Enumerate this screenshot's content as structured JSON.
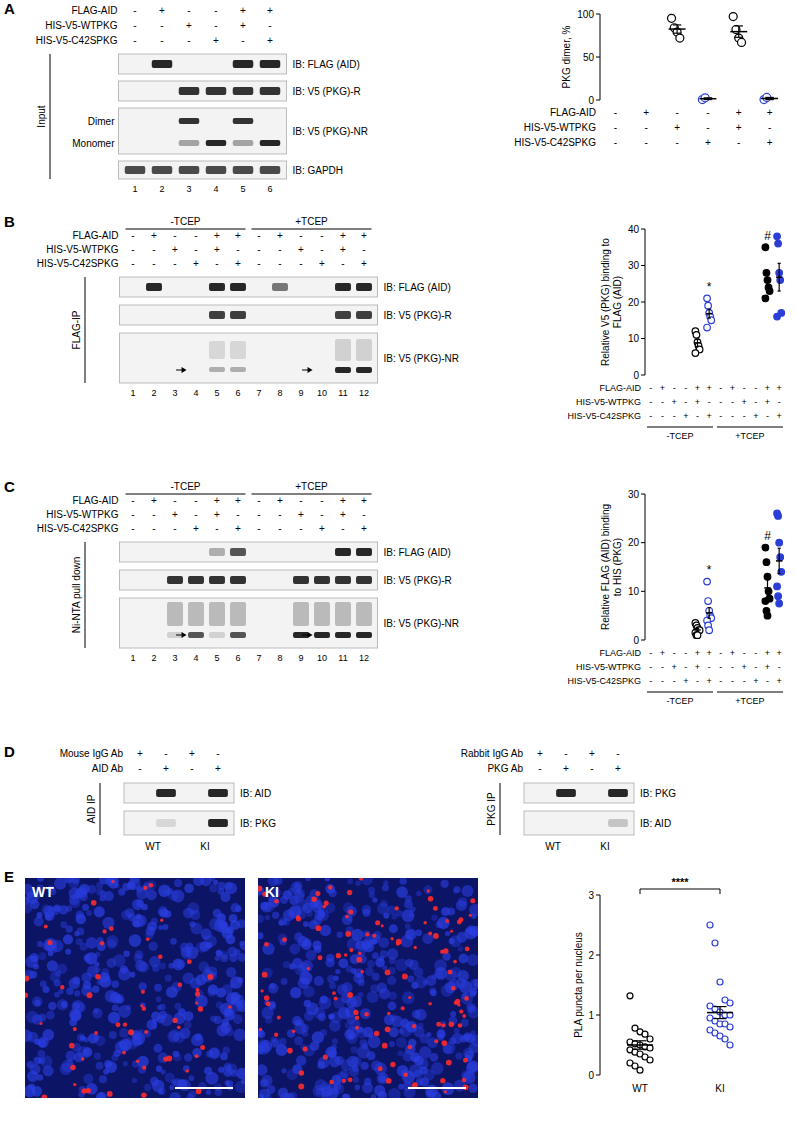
{
  "chart_data": [
    {
      "type": "scatter",
      "y_label": "PKG dimer, %",
      "ylim": [
        0,
        100
      ],
      "yticks": [
        0,
        50,
        100
      ],
      "grid": false,
      "categories": [
        null,
        null,
        null,
        null,
        null,
        null
      ],
      "condition_rows": [
        {
          "label": "FLAG-AID",
          "signs": [
            "-",
            "+",
            "-",
            "-",
            "+",
            "+"
          ]
        },
        {
          "label": "HIS-V5-WTPKG",
          "signs": [
            "-",
            "-",
            "+",
            "-",
            "+",
            "-"
          ]
        },
        {
          "label": "HIS-V5-C42SPKG",
          "signs": [
            "-",
            "-",
            "-",
            "+",
            "-",
            "+"
          ]
        }
      ],
      "colors": [
        "#000000",
        "#000000",
        "#000000",
        "#2b3fd6",
        "#000000",
        "#2b3fd6"
      ],
      "markers": [
        "open",
        "open",
        "open",
        "open",
        "open",
        "open"
      ],
      "points": [
        [],
        [],
        [
          95,
          84,
          79,
          72
        ],
        [
          0.5,
          2.5
        ],
        [
          97,
          82,
          72,
          67
        ],
        [
          0.5,
          3
        ]
      ],
      "means": [
        null,
        null,
        82.5,
        1.5,
        79.5,
        1.75
      ],
      "errors": [
        null,
        null,
        4.8,
        1,
        6.6,
        1.25
      ]
    },
    {
      "type": "scatter",
      "y_label": "Relative V5 (PKG) binding to FLAG (AID)",
      "ylim": [
        0,
        40
      ],
      "yticks": [
        0,
        10,
        20,
        30,
        40
      ],
      "grid": false,
      "categories": [
        null,
        null,
        null,
        null,
        null,
        null,
        null,
        null,
        null,
        null,
        null,
        null
      ],
      "condition_rows": [
        {
          "label": "FLAG-AID",
          "signs": [
            "-",
            "+",
            "-",
            "-",
            "+",
            "+",
            "-",
            "+",
            "-",
            "-",
            "+",
            "+"
          ]
        },
        {
          "label": "HIS-V5-WTPKG",
          "signs": [
            "-",
            "-",
            "+",
            "-",
            "+",
            "-",
            "-",
            "-",
            "+",
            "-",
            "+",
            "-"
          ]
        },
        {
          "label": "HIS-V5-C42SPKG",
          "signs": [
            "-",
            "-",
            "-",
            "+",
            "-",
            "+",
            "-",
            "-",
            "-",
            "+",
            "-",
            "+"
          ]
        }
      ],
      "groups": [
        {
          "label": "-TCEP",
          "span": [
            0,
            5
          ]
        },
        {
          "label": "+TCEP",
          "span": [
            6,
            11
          ]
        }
      ],
      "colors": [
        "#000000",
        "#000000",
        "#000000",
        "#2b3fd6",
        "#000000",
        "#2b3fd6",
        "#000000",
        "#000000",
        "#000000",
        "#2b3fd6",
        "#000000",
        "#2b3fd6"
      ],
      "markers": [
        "open",
        "open",
        "open",
        "open",
        "open",
        "open",
        "filled",
        "filled",
        "filled",
        "filled",
        "filled",
        "filled"
      ],
      "points": [
        [],
        [],
        [],
        [],
        [
          12,
          11,
          9,
          8,
          7,
          6
        ],
        [
          21,
          19,
          17,
          16,
          15,
          13
        ],
        [],
        [],
        [],
        [],
        [
          35,
          28,
          26,
          24,
          23,
          21
        ],
        [
          38,
          36,
          28,
          26,
          17,
          16
        ]
      ],
      "means": [
        null,
        null,
        null,
        null,
        8.8,
        16.8,
        null,
        null,
        null,
        null,
        26.2,
        26.8
      ],
      "errors": [
        null,
        null,
        null,
        null,
        1,
        1.2,
        null,
        null,
        null,
        null,
        2,
        3.8
      ],
      "annotations": [
        {
          "text": "*",
          "category": 5
        },
        {
          "text": "#",
          "category": 10
        }
      ]
    },
    {
      "type": "scatter",
      "y_label": "Relative FLAG (AID) binding to HIS (PKG)",
      "ylim": [
        0,
        30
      ],
      "yticks": [
        0,
        10,
        20,
        30
      ],
      "grid": false,
      "categories": [
        null,
        null,
        null,
        null,
        null,
        null,
        null,
        null,
        null,
        null,
        null,
        null
      ],
      "condition_rows": [
        {
          "label": "FLAG-AID",
          "signs": [
            "-",
            "+",
            "-",
            "-",
            "+",
            "+",
            "-",
            "+",
            "-",
            "-",
            "+",
            "+"
          ]
        },
        {
          "label": "HIS-V5-WTPKG",
          "signs": [
            "-",
            "-",
            "+",
            "-",
            "+",
            "-",
            "-",
            "-",
            "+",
            "-",
            "+",
            "-"
          ]
        },
        {
          "label": "HIS-V5-C42SPKG",
          "signs": [
            "-",
            "-",
            "-",
            "+",
            "-",
            "+",
            "-",
            "-",
            "-",
            "+",
            "-",
            "+"
          ]
        }
      ],
      "groups": [
        {
          "label": "-TCEP",
          "span": [
            0,
            5
          ]
        },
        {
          "label": "+TCEP",
          "span": [
            6,
            11
          ]
        }
      ],
      "colors": [
        "#000000",
        "#000000",
        "#000000",
        "#2b3fd6",
        "#000000",
        "#2b3fd6",
        "#000000",
        "#000000",
        "#000000",
        "#2b3fd6",
        "#000000",
        "#2b3fd6"
      ],
      "markers": [
        "open",
        "open",
        "open",
        "open",
        "open",
        "open",
        "filled",
        "filled",
        "filled",
        "filled",
        "filled",
        "filled"
      ],
      "points": [
        [],
        [],
        [],
        [],
        [
          3.5,
          3,
          2.5,
          2,
          2,
          1.5,
          1,
          1
        ],
        [
          12,
          8,
          6,
          5,
          4.5,
          4,
          3,
          2
        ],
        [],
        [],
        [],
        [],
        [
          19,
          16,
          13,
          10,
          8.5,
          8,
          6,
          5
        ],
        [
          26,
          25.5,
          20,
          17,
          14,
          11,
          9,
          7.5
        ]
      ],
      "means": [
        null,
        null,
        null,
        null,
        2.06,
        5.56,
        null,
        null,
        null,
        null,
        10.7,
        16.25
      ],
      "errors": [
        null,
        null,
        null,
        null,
        0.3,
        1.1,
        null,
        null,
        null,
        null,
        1.7,
        2.6
      ],
      "annotations": [
        {
          "text": "*",
          "category": 5
        },
        {
          "text": "#",
          "category": 10
        }
      ]
    },
    {
      "type": "scatter",
      "y_label": "PLA puncta per nucleus",
      "ylim": [
        0,
        3
      ],
      "yticks": [
        0,
        1,
        2,
        3
      ],
      "grid": false,
      "categories": [
        "WT",
        "KI"
      ],
      "colors": [
        "#000000",
        "#2b3fd6"
      ],
      "markers": [
        "open",
        "open"
      ],
      "points": [
        [
          1.32,
          0.78,
          0.72,
          0.68,
          0.6,
          0.55,
          0.52,
          0.5,
          0.47,
          0.45,
          0.42,
          0.38,
          0.35,
          0.3,
          0.25,
          0.2,
          0.15,
          0.08
        ],
        [
          2.5,
          2.2,
          1.55,
          1.25,
          1.2,
          1.15,
          1.1,
          1.05,
          1,
          1,
          0.95,
          0.9,
          0.85,
          0.85,
          0.8,
          0.75,
          0.7,
          0.65,
          0.6,
          0.5
        ]
      ],
      "means": [
        0.5,
        1.04
      ],
      "errors": [
        0.07,
        0.1
      ],
      "significance": "****"
    }
  ],
  "figure": {
    "panel_letters": [
      "A",
      "B",
      "C",
      "D",
      "E"
    ]
  },
  "blots": {
    "A": {
      "side_label": "Input",
      "condition_rows": [
        {
          "label": "FLAG-AID",
          "signs": [
            "-",
            "+",
            "-",
            "-",
            "+",
            "+"
          ]
        },
        {
          "label": "HIS-V5-WTPKG",
          "signs": [
            "-",
            "-",
            "+",
            "-",
            "+",
            "-"
          ]
        },
        {
          "label": "HIS-V5-C42SPKG",
          "signs": [
            "-",
            "-",
            "-",
            "+",
            "-",
            "+"
          ]
        }
      ],
      "probes": [
        "IB: FLAG (AID)",
        "IB: V5 (PKG)-R",
        "IB: V5 (PKG)-NR",
        "IB: GAPDH"
      ],
      "band_labels": [
        "Dimer",
        "Monomer"
      ],
      "lanes": [
        1,
        2,
        3,
        4,
        5,
        6
      ]
    },
    "B": {
      "side_label": "FLAG-IP",
      "groups": [
        {
          "label": "-TCEP",
          "span": [
            0,
            5
          ]
        },
        {
          "label": "+TCEP",
          "span": [
            6,
            11
          ]
        }
      ],
      "condition_rows": [
        {
          "label": "FLAG-AID",
          "signs": [
            "-",
            "+",
            "-",
            "-",
            "+",
            "+",
            "-",
            "+",
            "-",
            "-",
            "+",
            "+"
          ]
        },
        {
          "label": "HIS-V5-WTPKG",
          "signs": [
            "-",
            "-",
            "+",
            "-",
            "+",
            "-",
            "-",
            "-",
            "+",
            "-",
            "+",
            "-"
          ]
        },
        {
          "label": "HIS-V5-C42SPKG",
          "signs": [
            "-",
            "-",
            "-",
            "+",
            "-",
            "+",
            "-",
            "-",
            "-",
            "+",
            "-",
            "+"
          ]
        }
      ],
      "probes": [
        "IB: FLAG (AID)",
        "IB: V5 (PKG)-R",
        "IB: V5 (PKG)-NR"
      ],
      "lanes": [
        1,
        2,
        3,
        4,
        5,
        6,
        7,
        8,
        9,
        10,
        11,
        12
      ]
    },
    "C": {
      "side_label": "Ni-NTA pull down",
      "groups": [
        {
          "label": "-TCEP",
          "span": [
            0,
            5
          ]
        },
        {
          "label": "+TCEP",
          "span": [
            6,
            11
          ]
        }
      ],
      "condition_rows": [
        {
          "label": "FLAG-AID",
          "signs": [
            "-",
            "+",
            "-",
            "-",
            "+",
            "+",
            "-",
            "+",
            "-",
            "-",
            "+",
            "+"
          ]
        },
        {
          "label": "HIS-V5-WTPKG",
          "signs": [
            "-",
            "-",
            "+",
            "-",
            "+",
            "-",
            "-",
            "-",
            "+",
            "-",
            "+",
            "-"
          ]
        },
        {
          "label": "HIS-V5-C42SPKG",
          "signs": [
            "-",
            "-",
            "-",
            "+",
            "-",
            "+",
            "-",
            "-",
            "-",
            "+",
            "-",
            "+"
          ]
        }
      ],
      "probes": [
        "IB: FLAG (AID)",
        "IB: V5 (PKG)-R",
        "IB: V5 (PKG)-NR"
      ],
      "lanes": [
        1,
        2,
        3,
        4,
        5,
        6,
        7,
        8,
        9,
        10,
        11,
        12
      ]
    },
    "D": [
      {
        "side_label": "AID IP",
        "condition_rows": [
          {
            "label": "Mouse IgG Ab",
            "signs": [
              "+",
              "-",
              "+",
              "-"
            ]
          },
          {
            "label": "AID Ab",
            "signs": [
              "-",
              "+",
              "-",
              "+"
            ]
          }
        ],
        "probes": [
          "IB: AID",
          "IB: PKG"
        ],
        "genotypes": [
          "WT",
          "KI"
        ]
      },
      {
        "side_label": "PKG IP",
        "condition_rows": [
          {
            "label": "Rabbit IgG Ab",
            "signs": [
              "+",
              "-",
              "+",
              "-"
            ]
          },
          {
            "label": "PKG Ab",
            "signs": [
              "-",
              "+",
              "-",
              "+"
            ]
          }
        ],
        "probes": [
          "IB: PKG",
          "IB: AID"
        ],
        "genotypes": [
          "WT",
          "KI"
        ]
      }
    ]
  },
  "images": {
    "labels": [
      "WT",
      "KI"
    ]
  }
}
